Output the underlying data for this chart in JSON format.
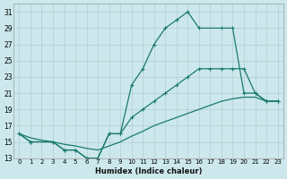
{
  "xlabel": "Humidex (Indice chaleur)",
  "color": "#1a7a6e",
  "bg_color": "#cce8ec",
  "grid_color": "#b0cdd2",
  "ylim": [
    13,
    32
  ],
  "xlim": [
    -0.5,
    23.5
  ],
  "yticks": [
    13,
    15,
    17,
    19,
    21,
    23,
    25,
    27,
    29,
    31
  ],
  "xticks": [
    0,
    1,
    2,
    3,
    4,
    5,
    6,
    7,
    8,
    9,
    10,
    11,
    12,
    13,
    14,
    15,
    16,
    17,
    18,
    19,
    20,
    21,
    22,
    23
  ],
  "curve_high_x": [
    0,
    1,
    3,
    4,
    5,
    6,
    7,
    8,
    9,
    10,
    11,
    12,
    13,
    14,
    15,
    16,
    18,
    19,
    20,
    21,
    22,
    23
  ],
  "curve_high_y": [
    16,
    15,
    15,
    14,
    14,
    13,
    13,
    16,
    16,
    22,
    24,
    27,
    29,
    30,
    31,
    29,
    29,
    29,
    21,
    21,
    20,
    20
  ],
  "curve_mid_x": [
    0,
    1,
    3,
    4,
    5,
    6,
    7,
    8,
    9,
    10,
    11,
    12,
    13,
    14,
    15,
    16,
    17,
    18,
    19,
    20,
    21,
    22,
    23
  ],
  "curve_mid_y": [
    16,
    15,
    15,
    14,
    14,
    13,
    13,
    16,
    16,
    18,
    19,
    20,
    21,
    22,
    23,
    24,
    24,
    24,
    24,
    24,
    21,
    20,
    20
  ],
  "curve_diag_x": [
    0,
    1,
    2,
    3,
    4,
    5,
    6,
    7,
    8,
    9,
    10,
    11,
    12,
    13,
    14,
    15,
    16,
    17,
    18,
    19,
    20,
    21,
    22,
    23
  ],
  "curve_diag_y": [
    16,
    15.5,
    15.2,
    15,
    14.7,
    14.5,
    14.2,
    14,
    14.5,
    15,
    15.7,
    16.3,
    17,
    17.5,
    18,
    18.5,
    19,
    19.5,
    20,
    20.3,
    20.5,
    20.5,
    20,
    20
  ]
}
